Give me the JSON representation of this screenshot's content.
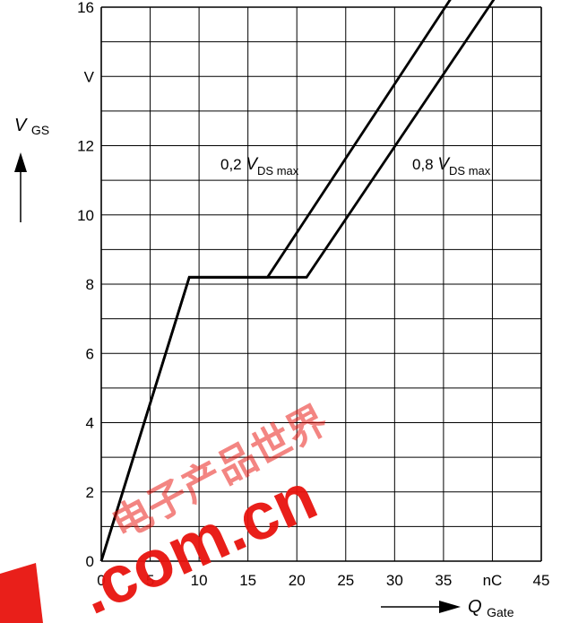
{
  "chart_data": {
    "type": "line",
    "y_label": {
      "var": "V",
      "sub": "GS"
    },
    "x_label": {
      "var": "Q",
      "sub": "Gate"
    },
    "y_unit": "V",
    "x_unit": "nC",
    "xlim": [
      0,
      45
    ],
    "ylim": [
      0,
      16
    ],
    "x_ticks": [
      0,
      5,
      10,
      15,
      20,
      25,
      30,
      35,
      45
    ],
    "y_ticks": [
      0,
      2,
      4,
      6,
      8,
      10,
      12,
      16
    ],
    "grid": true,
    "series": [
      {
        "name": "0,2 V DS max",
        "label": {
          "prefix": "0,2 ",
          "var": "V",
          "sub": "DS max"
        },
        "x": [
          0,
          9,
          17,
          37.5
        ],
        "y": [
          0,
          8.2,
          8.2,
          17
        ]
      },
      {
        "name": "0,8 V DS max",
        "label": {
          "prefix": "0,8 ",
          "var": "V",
          "sub": "DS max"
        },
        "x": [
          0,
          9,
          21,
          42
        ],
        "y": [
          0,
          8.2,
          8.2,
          17
        ]
      }
    ]
  },
  "watermark": {
    "text": ".com.cn",
    "chars": "电子产品世界",
    "color": "#e8140e"
  }
}
